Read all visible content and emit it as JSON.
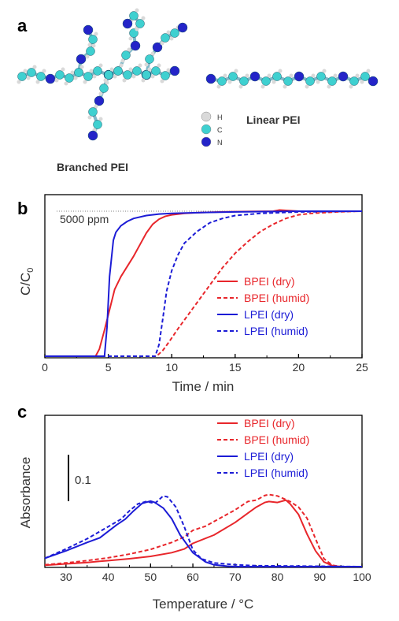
{
  "panel_a": {
    "label": "a",
    "branched_label": "Branched PEI",
    "linear_label": "Linear PEI",
    "atom_legend": [
      {
        "element": "H",
        "color": "#d9d9d9"
      },
      {
        "element": "C",
        "color": "#3fd0d0"
      },
      {
        "element": "N",
        "color": "#2424c8"
      }
    ]
  },
  "chart_data": [
    {
      "panel": "b",
      "type": "line",
      "xlabel": "Time / min",
      "ylabel_main": "C/C",
      "ylabel_sub": "0",
      "xlim": [
        0,
        25
      ],
      "xticks": [
        "0",
        "5",
        "10",
        "15",
        "20",
        "25"
      ],
      "annotation": "5000 ppm",
      "series": [
        {
          "name": "BPEI (dry)",
          "color": "#e8262b",
          "dash": false,
          "x": [
            0,
            4.0,
            4.3,
            4.7,
            5.1,
            5.5,
            6.0,
            6.5,
            7.0,
            7.5,
            8.0,
            8.5,
            9.0,
            9.5,
            10.0,
            11.0,
            12.0,
            14.0,
            16.0,
            18.0,
            18.5,
            20.0,
            22.0,
            25.0
          ],
          "y": [
            0,
            0,
            0.05,
            0.18,
            0.32,
            0.46,
            0.55,
            0.62,
            0.69,
            0.77,
            0.85,
            0.91,
            0.945,
            0.965,
            0.975,
            0.985,
            0.99,
            0.995,
            0.998,
            1.0,
            1.008,
            1.0,
            1.0,
            1.0
          ]
        },
        {
          "name": "BPEI (humid)",
          "color": "#e8262b",
          "dash": true,
          "x": [
            0,
            8.8,
            9.3,
            9.8,
            10.5,
            11.0,
            12.0,
            13.0,
            14.0,
            15.0,
            16.0,
            17.0,
            18.0,
            19.0,
            20.0,
            21.0,
            22.0,
            23.0,
            25.0
          ],
          "y": [
            0,
            0,
            0.04,
            0.1,
            0.19,
            0.25,
            0.37,
            0.49,
            0.61,
            0.71,
            0.79,
            0.86,
            0.91,
            0.95,
            0.975,
            0.985,
            0.99,
            0.995,
            1.0
          ]
        },
        {
          "name": "LPEI (dry)",
          "color": "#1c1cd6",
          "dash": false,
          "x": [
            0,
            4.7,
            4.9,
            5.1,
            5.4,
            5.6,
            6.0,
            6.5,
            7.0,
            8.0,
            9.0,
            10.0,
            12.0,
            15.0,
            20.0,
            25.0
          ],
          "y": [
            0,
            0,
            0.2,
            0.55,
            0.8,
            0.855,
            0.9,
            0.93,
            0.95,
            0.97,
            0.98,
            0.985,
            0.99,
            0.995,
            1.0,
            1.0
          ]
        },
        {
          "name": "LPEI (humid)",
          "color": "#1c1cd6",
          "dash": true,
          "x": [
            0,
            8.7,
            9.0,
            9.3,
            9.6,
            10.0,
            10.5,
            11.0,
            12.0,
            13.0,
            14.0,
            15.0,
            17.0,
            20.0,
            25.0
          ],
          "y": [
            0,
            0,
            0.08,
            0.26,
            0.45,
            0.59,
            0.7,
            0.78,
            0.86,
            0.92,
            0.95,
            0.97,
            0.985,
            0.995,
            1.0
          ]
        }
      ],
      "reference_line_y": 1.0
    },
    {
      "panel": "c",
      "type": "line",
      "xlabel": "Temperature / °C",
      "ylabel": "Absorbance",
      "xlim": [
        25,
        100
      ],
      "xticks": [
        "30",
        "40",
        "50",
        "60",
        "70",
        "80",
        "90",
        "100"
      ],
      "scale_bar_label": "0.1",
      "scale_bar_value": 0.1,
      "series": [
        {
          "name": "BPEI (dry)",
          "color": "#e8262b",
          "dash": false,
          "x": [
            25,
            30,
            35,
            40,
            45,
            50,
            55,
            58,
            60,
            65,
            70,
            73,
            75,
            77,
            78,
            80,
            82,
            83,
            85,
            87,
            89,
            91,
            93,
            95,
            100
          ],
          "y": [
            0.003,
            0.006,
            0.009,
            0.013,
            0.017,
            0.022,
            0.03,
            0.038,
            0.05,
            0.068,
            0.095,
            0.115,
            0.128,
            0.138,
            0.14,
            0.138,
            0.143,
            0.135,
            0.112,
            0.07,
            0.034,
            0.01,
            0.002,
            0.0,
            0.0
          ]
        },
        {
          "name": "BPEI (humid)",
          "color": "#e8262b",
          "dash": true,
          "x": [
            25,
            30,
            35,
            40,
            45,
            50,
            55,
            58,
            60,
            63,
            65,
            70,
            73,
            75,
            77,
            78,
            80,
            83,
            85,
            87,
            89,
            91,
            93,
            95,
            100
          ],
          "y": [
            0.004,
            0.008,
            0.013,
            0.019,
            0.027,
            0.037,
            0.052,
            0.064,
            0.078,
            0.087,
            0.097,
            0.122,
            0.14,
            0.143,
            0.153,
            0.155,
            0.152,
            0.14,
            0.128,
            0.104,
            0.06,
            0.017,
            0.003,
            0.0,
            0.0
          ]
        },
        {
          "name": "LPEI (dry)",
          "color": "#1c1cd6",
          "dash": false,
          "x": [
            25,
            30,
            35,
            38,
            40,
            42,
            44,
            46,
            48,
            50,
            51,
            53,
            55,
            57,
            60,
            63,
            65,
            68,
            70,
            100
          ],
          "y": [
            0.018,
            0.034,
            0.052,
            0.062,
            0.076,
            0.09,
            0.102,
            0.12,
            0.136,
            0.141,
            0.138,
            0.126,
            0.103,
            0.068,
            0.03,
            0.01,
            0.004,
            0.001,
            0.0,
            0.0
          ]
        },
        {
          "name": "LPEI (humid)",
          "color": "#1c1cd6",
          "dash": true,
          "x": [
            25,
            30,
            35,
            40,
            43,
            45,
            47,
            49,
            51,
            52,
            53,
            54,
            56,
            58,
            60,
            62,
            65,
            70,
            75,
            100
          ],
          "y": [
            0.018,
            0.038,
            0.06,
            0.086,
            0.102,
            0.12,
            0.135,
            0.14,
            0.136,
            0.144,
            0.152,
            0.15,
            0.128,
            0.085,
            0.036,
            0.017,
            0.008,
            0.004,
            0.002,
            0.0
          ]
        }
      ]
    }
  ]
}
